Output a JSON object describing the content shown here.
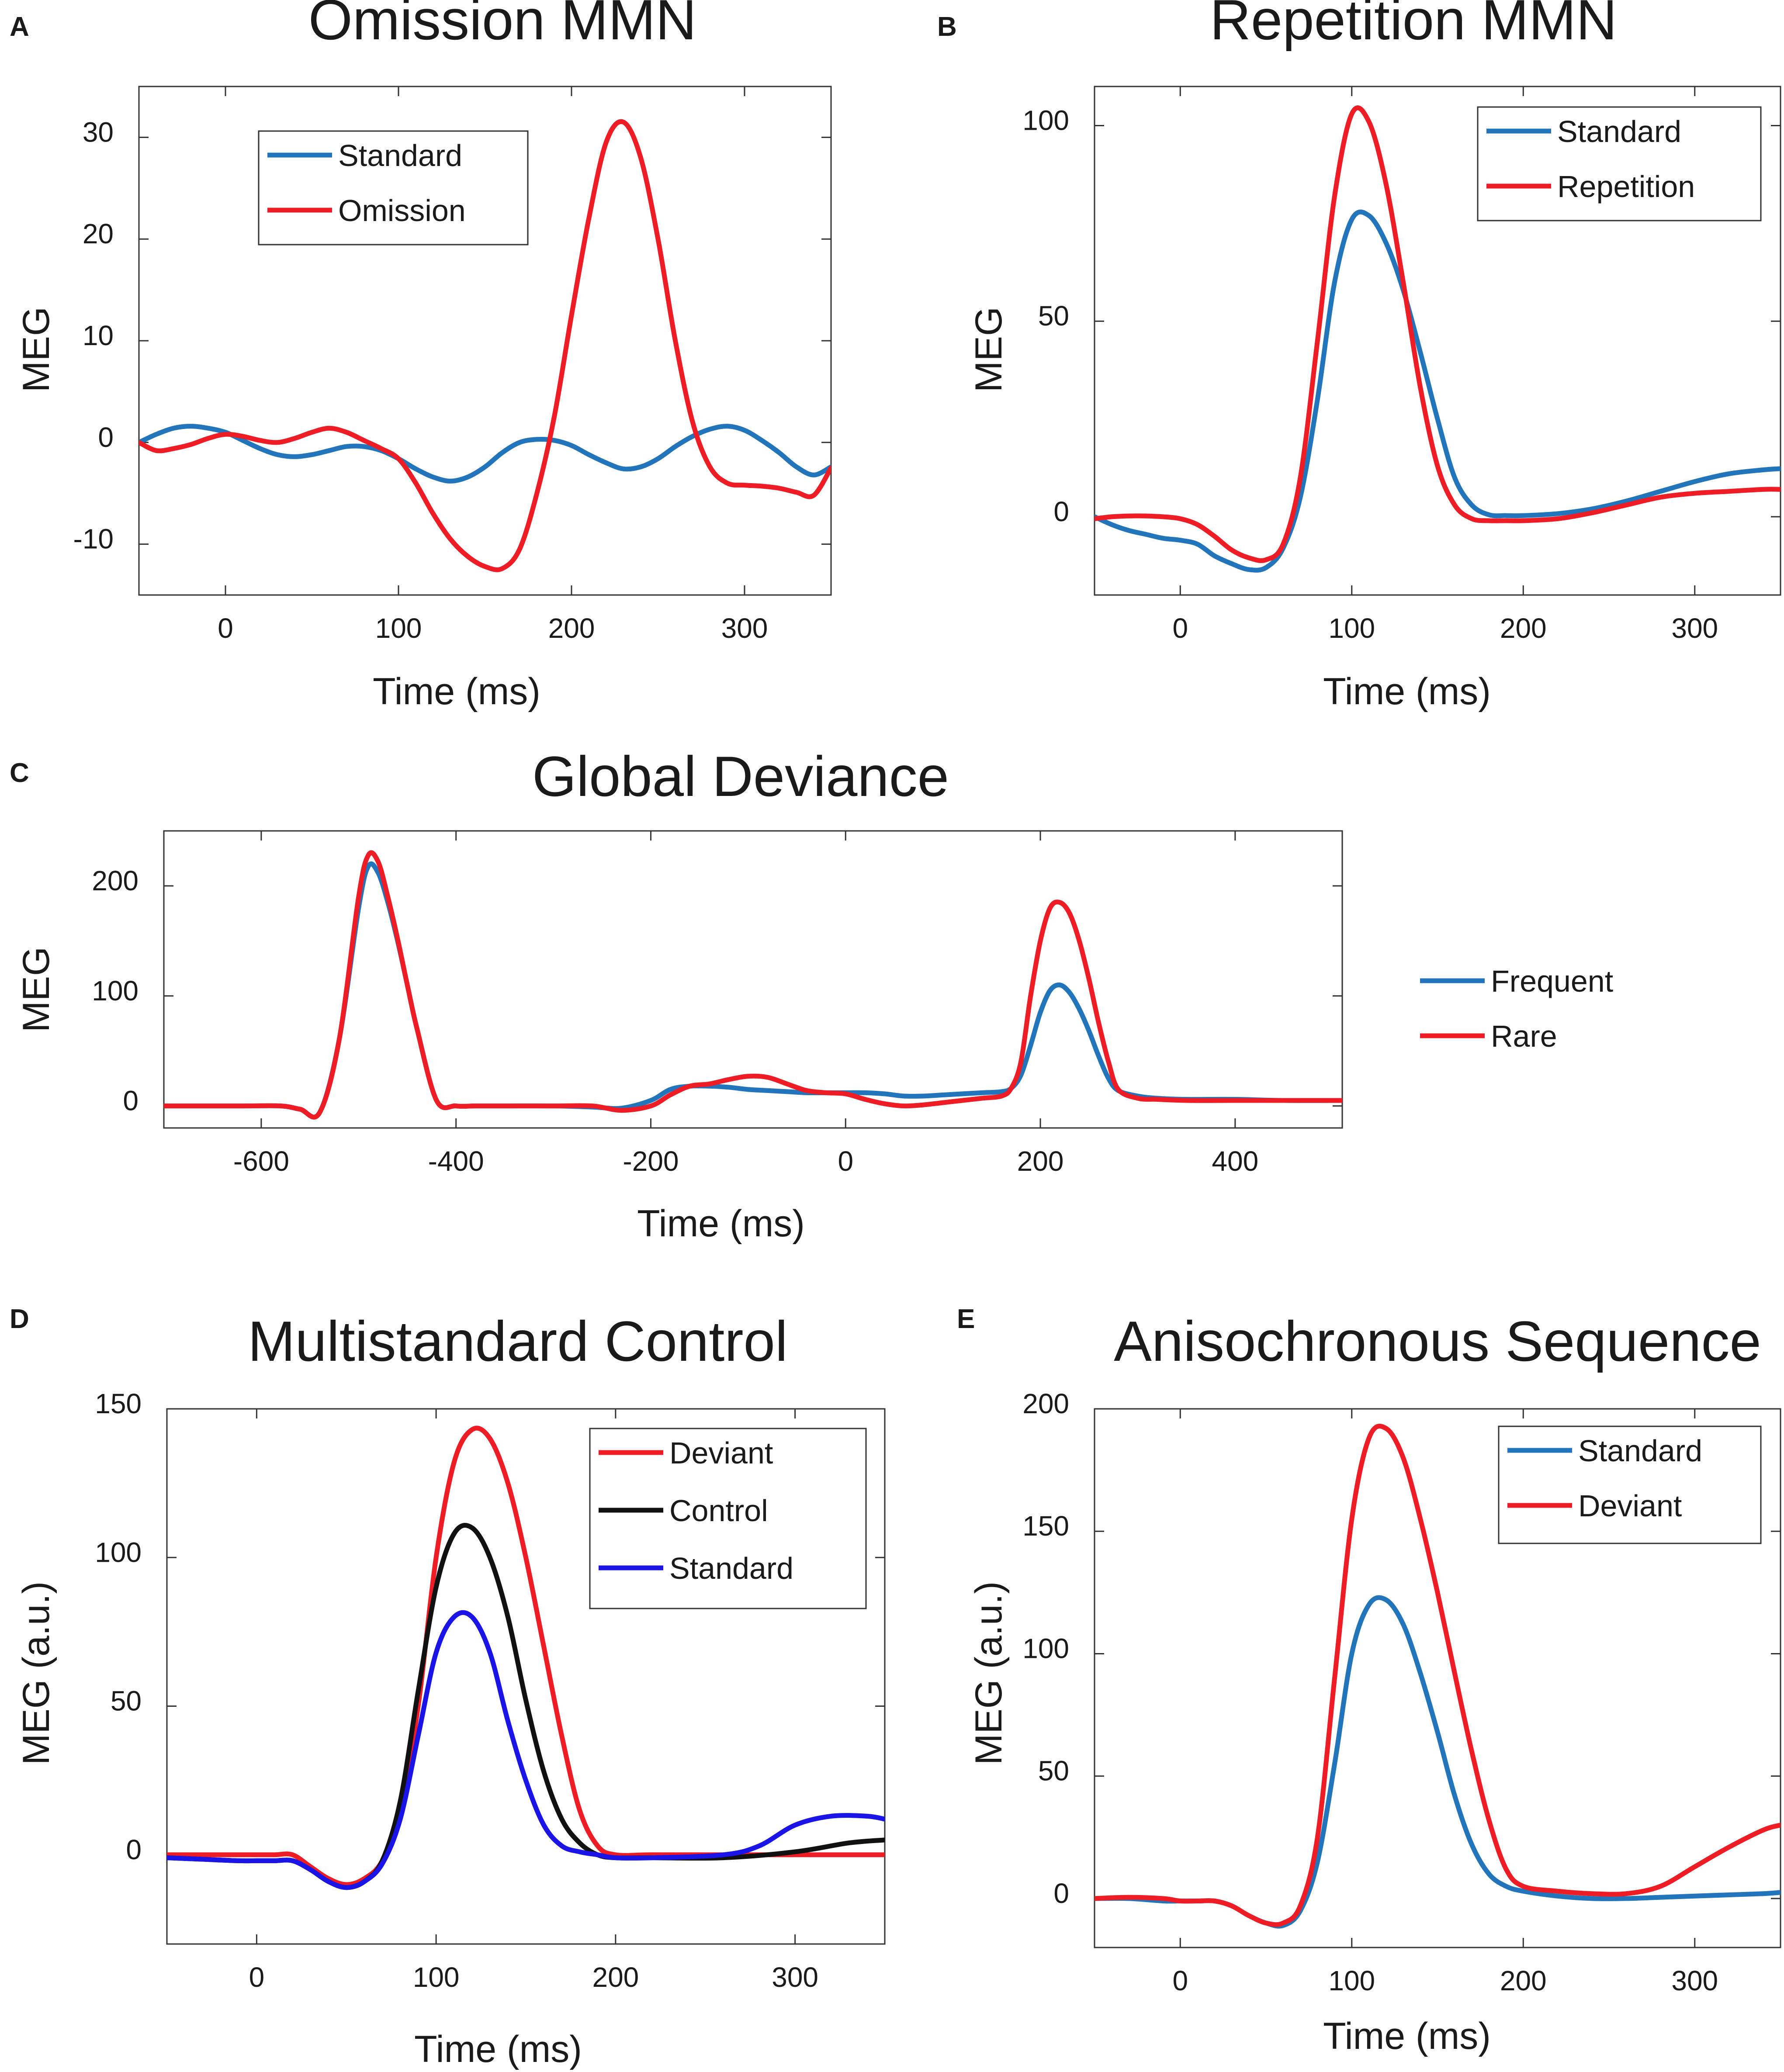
{
  "colors": {
    "blue": "#2274bb",
    "red": "#ee1c24",
    "black": "#111111",
    "pureblue": "#1a14e6",
    "axis": "#333333"
  },
  "chart_data": [
    {
      "panel": "A",
      "type": "line",
      "title": "Omission MMN",
      "xlabel": "Time (ms)",
      "ylabel": "MEG",
      "xlim": [
        -50,
        350
      ],
      "ylim": [
        -15,
        35
      ],
      "xticks": [
        0,
        100,
        200,
        300
      ],
      "yticks": [
        -10,
        0,
        10,
        20,
        30
      ],
      "legend": "top-left",
      "series": [
        {
          "name": "Standard",
          "color": "blue",
          "x": [
            -50,
            -40,
            -30,
            -20,
            -10,
            0,
            10,
            20,
            30,
            40,
            50,
            60,
            70,
            80,
            90,
            100,
            110,
            120,
            130,
            140,
            150,
            160,
            170,
            180,
            190,
            200,
            210,
            220,
            230,
            240,
            250,
            260,
            270,
            280,
            290,
            300,
            310,
            320,
            330,
            340,
            350
          ],
          "y": [
            0,
            0.8,
            1.4,
            1.6,
            1.4,
            1,
            0.2,
            -0.6,
            -1.2,
            -1.4,
            -1.2,
            -0.8,
            -0.4,
            -0.4,
            -0.8,
            -1.6,
            -2.6,
            -3.4,
            -3.8,
            -3.4,
            -2.4,
            -1,
            0,
            0.3,
            0.2,
            -0.3,
            -1.2,
            -2,
            -2.6,
            -2.4,
            -1.6,
            -0.4,
            0.6,
            1.3,
            1.6,
            1.2,
            0.2,
            -1,
            -2.4,
            -3.2,
            -2.4
          ]
        },
        {
          "name": "Omission",
          "color": "red",
          "x": [
            -50,
            -40,
            -30,
            -20,
            -10,
            0,
            10,
            20,
            30,
            40,
            50,
            60,
            70,
            80,
            90,
            100,
            110,
            120,
            130,
            140,
            150,
            160,
            170,
            180,
            190,
            200,
            210,
            220,
            230,
            240,
            250,
            260,
            270,
            280,
            290,
            300,
            310,
            320,
            330,
            340,
            350
          ],
          "y": [
            0,
            -0.8,
            -0.6,
            -0.2,
            0.4,
            0.8,
            0.6,
            0.2,
            0,
            0.4,
            1,
            1.4,
            1,
            0.2,
            -0.6,
            -1.6,
            -4,
            -7,
            -9.5,
            -11.2,
            -12.2,
            -12.4,
            -10.5,
            -5,
            2.5,
            12.5,
            22,
            29.5,
            31.5,
            28,
            20,
            10,
            2,
            -2.4,
            -4,
            -4.2,
            -4.3,
            -4.5,
            -4.9,
            -5.2,
            -2.5
          ]
        }
      ]
    },
    {
      "panel": "B",
      "type": "line",
      "title": "Repetition MMN",
      "xlabel": "Time (ms)",
      "ylabel": "MEG",
      "xlim": [
        -50,
        350
      ],
      "ylim": [
        -20,
        110
      ],
      "xticks": [
        0,
        100,
        200,
        300
      ],
      "yticks": [
        0,
        50,
        100
      ],
      "legend": "top-right",
      "series": [
        {
          "name": "Standard",
          "color": "blue",
          "x": [
            -50,
            -40,
            -30,
            -20,
            -10,
            0,
            10,
            20,
            30,
            40,
            50,
            60,
            70,
            80,
            90,
            100,
            110,
            120,
            130,
            140,
            150,
            160,
            170,
            180,
            190,
            200,
            220,
            240,
            260,
            280,
            300,
            320,
            340,
            350
          ],
          "y": [
            0,
            -2,
            -3.5,
            -4.5,
            -5.5,
            -6,
            -7,
            -10,
            -12,
            -13.5,
            -13,
            -8,
            5,
            30,
            60,
            76,
            77,
            70,
            58,
            42,
            25,
            10,
            3,
            0.5,
            0.3,
            0.3,
            0.8,
            2,
            4,
            6.5,
            9,
            11,
            12,
            12.3
          ]
        },
        {
          "name": "Repetition",
          "color": "red",
          "x": [
            -50,
            -40,
            -30,
            -20,
            -10,
            0,
            10,
            20,
            30,
            40,
            50,
            60,
            70,
            80,
            90,
            100,
            110,
            120,
            130,
            140,
            150,
            160,
            170,
            180,
            190,
            200,
            220,
            240,
            260,
            280,
            300,
            320,
            340,
            350
          ],
          "y": [
            -0.5,
            0,
            0.2,
            0.2,
            0,
            -0.5,
            -2,
            -5,
            -8.5,
            -10.5,
            -11,
            -7,
            10,
            45,
            82,
            103,
            101,
            85,
            60,
            33,
            13,
            3,
            -0.5,
            -1,
            -1,
            -1,
            -0.5,
            1,
            3,
            5,
            6,
            6.5,
            7,
            7
          ]
        }
      ]
    },
    {
      "panel": "C",
      "type": "line",
      "title": "Global Deviance",
      "xlabel": "Time (ms)",
      "ylabel": "MEG",
      "xlim": [
        -700,
        510
      ],
      "ylim": [
        -20,
        250
      ],
      "xticks": [
        -600,
        -400,
        -200,
        0,
        200,
        400
      ],
      "yticks": [
        0,
        100,
        200
      ],
      "legend": "right",
      "series": [
        {
          "name": "Frequent",
          "color": "blue",
          "x": [
            -700,
            -620,
            -580,
            -560,
            -540,
            -520,
            -500,
            -490,
            -480,
            -470,
            -460,
            -450,
            -440,
            -420,
            -400,
            -380,
            -350,
            -300,
            -260,
            -230,
            -200,
            -180,
            -160,
            -140,
            -120,
            -100,
            -80,
            -60,
            -40,
            -20,
            0,
            20,
            40,
            60,
            80,
            100,
            120,
            140,
            160,
            170,
            180,
            190,
            200,
            210,
            220,
            230,
            240,
            250,
            260,
            270,
            280,
            300,
            320,
            350,
            400,
            450,
            510
          ],
          "y": [
            0,
            0,
            0,
            -3,
            -6,
            60,
            180,
            218,
            212,
            185,
            150,
            110,
            70,
            5,
            0,
            0,
            0,
            0,
            -1,
            -2,
            5,
            15,
            18,
            18,
            17,
            15,
            14,
            13,
            12,
            12,
            12,
            12,
            11,
            9,
            9,
            10,
            11,
            12,
            13,
            16,
            28,
            55,
            85,
            105,
            110,
            103,
            88,
            68,
            45,
            25,
            14,
            9,
            7,
            6,
            6,
            5,
            5
          ]
        },
        {
          "name": "Rare",
          "color": "red",
          "x": [
            -700,
            -620,
            -580,
            -560,
            -540,
            -520,
            -500,
            -490,
            -480,
            -470,
            -460,
            -450,
            -440,
            -420,
            -400,
            -380,
            -350,
            -300,
            -260,
            -230,
            -200,
            -180,
            -160,
            -140,
            -120,
            -100,
            -80,
            -60,
            -40,
            -20,
            0,
            20,
            40,
            60,
            80,
            100,
            120,
            140,
            160,
            170,
            180,
            190,
            200,
            210,
            220,
            230,
            240,
            250,
            260,
            270,
            280,
            300,
            320,
            350,
            400,
            450,
            510
          ],
          "y": [
            0,
            0,
            0,
            -3,
            -6,
            60,
            190,
            228,
            222,
            190,
            152,
            110,
            70,
            5,
            0,
            0,
            0,
            0,
            0,
            -4,
            0,
            10,
            18,
            20,
            24,
            27,
            26,
            20,
            14,
            12,
            11,
            6,
            2,
            0,
            1,
            3,
            5,
            7,
            9,
            16,
            40,
            100,
            150,
            180,
            185,
            175,
            150,
            115,
            75,
            40,
            15,
            7,
            6,
            5,
            5,
            5,
            5
          ]
        }
      ]
    },
    {
      "panel": "D",
      "type": "line",
      "title": "Multistandard Control",
      "xlabel": "Time (ms)",
      "ylabel": "MEG (a.u.)",
      "xlim": [
        -50,
        350
      ],
      "ylim": [
        -30,
        150
      ],
      "xticks": [
        0,
        100,
        200,
        300
      ],
      "yticks": [
        0,
        50,
        100,
        150
      ],
      "legend": "top-right",
      "series": [
        {
          "name": "Deviant",
          "color": "red",
          "x": [
            -50,
            -30,
            -10,
            0,
            10,
            20,
            30,
            40,
            50,
            60,
            70,
            80,
            90,
            100,
            110,
            120,
            130,
            140,
            150,
            160,
            170,
            180,
            190,
            200,
            220,
            260,
            300,
            330,
            350
          ],
          "y": [
            0,
            0,
            0,
            0,
            0,
            0,
            -4,
            -8,
            -10,
            -8,
            -2,
            15,
            50,
            100,
            132,
            143,
            140,
            125,
            100,
            70,
            40,
            15,
            3,
            0,
            0,
            0,
            0,
            0,
            0
          ]
        },
        {
          "name": "Control",
          "color": "black",
          "x": [
            -50,
            -30,
            -10,
            0,
            10,
            20,
            30,
            40,
            50,
            60,
            70,
            80,
            90,
            100,
            110,
            120,
            130,
            140,
            150,
            160,
            170,
            180,
            190,
            200,
            220,
            260,
            300,
            330,
            350
          ],
          "y": [
            -1,
            -1.5,
            -2,
            -2,
            -2,
            -2,
            -5,
            -9,
            -11,
            -9,
            -2,
            18,
            55,
            90,
            108,
            110,
            100,
            80,
            52,
            28,
            12,
            4,
            0,
            -1,
            -1,
            -1,
            1,
            4,
            5
          ]
        },
        {
          "name": "Standard",
          "color": "pureblue",
          "x": [
            -50,
            -30,
            -10,
            0,
            10,
            20,
            30,
            40,
            50,
            60,
            70,
            80,
            90,
            100,
            110,
            120,
            130,
            140,
            150,
            160,
            170,
            180,
            190,
            200,
            220,
            260,
            280,
            300,
            320,
            340,
            350
          ],
          "y": [
            -1,
            -1.5,
            -2,
            -2,
            -2,
            -2,
            -5,
            -9,
            -11,
            -9,
            -3,
            12,
            40,
            68,
            80,
            80,
            68,
            45,
            25,
            10,
            3,
            1,
            0,
            -1,
            -1,
            0,
            3,
            10,
            13,
            13,
            12
          ]
        }
      ]
    },
    {
      "panel": "E",
      "type": "line",
      "title": "Anisochronous Sequence",
      "xlabel": "Time (ms)",
      "ylabel": "MEG (a.u.)",
      "xlim": [
        -50,
        350
      ],
      "ylim": [
        -20,
        200
      ],
      "xticks": [
        0,
        100,
        200,
        300
      ],
      "yticks": [
        0,
        50,
        100,
        150,
        200
      ],
      "legend": "top-right",
      "series": [
        {
          "name": "Standard",
          "color": "blue",
          "x": [
            -50,
            -30,
            -10,
            0,
            10,
            20,
            30,
            40,
            50,
            60,
            70,
            80,
            90,
            100,
            110,
            120,
            130,
            140,
            150,
            160,
            170,
            180,
            190,
            200,
            220,
            240,
            260,
            280,
            300,
            320,
            340,
            350
          ],
          "y": [
            0,
            0,
            -1,
            -1,
            -1,
            -1,
            -3,
            -7,
            -10,
            -11,
            -5,
            15,
            55,
            100,
            120,
            122,
            112,
            92,
            68,
            42,
            22,
            10,
            5,
            3,
            1,
            0,
            0,
            0.5,
            1,
            1.5,
            2,
            2.5
          ]
        },
        {
          "name": "Deviant",
          "color": "red",
          "x": [
            -50,
            -30,
            -10,
            0,
            10,
            20,
            30,
            40,
            50,
            60,
            70,
            80,
            90,
            100,
            110,
            120,
            130,
            140,
            150,
            160,
            170,
            180,
            190,
            200,
            220,
            240,
            260,
            280,
            300,
            320,
            340,
            350
          ],
          "y": [
            0,
            0.5,
            0,
            -1,
            -1,
            -1,
            -3,
            -7,
            -10,
            -10,
            -3,
            25,
            90,
            155,
            188,
            192,
            180,
            155,
            125,
            92,
            60,
            32,
            12,
            5,
            3,
            2,
            2,
            5,
            13,
            21,
            28,
            30
          ]
        }
      ]
    }
  ]
}
